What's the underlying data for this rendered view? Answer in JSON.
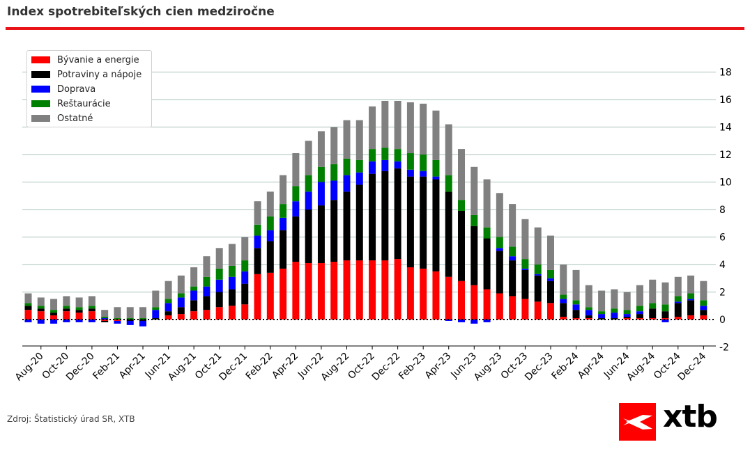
{
  "title": "Index spotrebiteľských cien medziročne",
  "source": "Zdroj: Štatistický úrad SR, XTB",
  "logo": {
    "text": "xtb"
  },
  "colors": {
    "accent": "#e8141a",
    "grid": "#a8c0bb"
  },
  "chart_data": {
    "type": "bar",
    "stacked": true,
    "title": "Index spotrebiteľských cien medziročne",
    "xlabel": "",
    "ylabel": "",
    "ylim": [
      -2,
      19
    ],
    "yticks": [
      -2,
      0,
      2,
      4,
      6,
      8,
      10,
      12,
      14,
      16,
      18
    ],
    "y_axis_side": "right",
    "grid": "horizontal",
    "zero_line": "dotted",
    "legend_position": "top-left",
    "categories": [
      "Jul-20",
      "Aug-20",
      "Sep-20",
      "Oct-20",
      "Nov-20",
      "Dec-20",
      "Jan-21",
      "Feb-21",
      "Mar-21",
      "Apr-21",
      "May-21",
      "Jun-21",
      "Jul-21",
      "Aug-21",
      "Sep-21",
      "Oct-21",
      "Nov-21",
      "Dec-21",
      "Jan-22",
      "Feb-22",
      "Mar-22",
      "Apr-22",
      "May-22",
      "Jun-22",
      "Jul-22",
      "Aug-22",
      "Sep-22",
      "Oct-22",
      "Nov-22",
      "Dec-22",
      "Jan-23",
      "Feb-23",
      "Mar-23",
      "Apr-23",
      "May-23",
      "Jun-23",
      "Jul-23",
      "Aug-23",
      "Sep-23",
      "Oct-23",
      "Nov-23",
      "Dec-23",
      "Jan-24",
      "Feb-24",
      "Mar-24",
      "Apr-24",
      "May-24",
      "Jun-24",
      "Jul-24",
      "Aug-24",
      "Sep-24",
      "Oct-24",
      "Nov-24",
      "Dec-24"
    ],
    "xtick_labels": [
      "Aug-20",
      "Oct-20",
      "Dec-20",
      "Feb-21",
      "Apr-21",
      "Jun-21",
      "Aug-21",
      "Oct-21",
      "Dec-21",
      "Feb-22",
      "Apr-22",
      "Jun-22",
      "Aug-22",
      "Oct-22",
      "Dec-22",
      "Feb-23",
      "Apr-23",
      "Jun-23",
      "Aug-23",
      "Oct-23",
      "Dec-23",
      "Feb-24",
      "Apr-24",
      "Jun-24",
      "Aug-24",
      "Oct-24",
      "Dec-24"
    ],
    "series": [
      {
        "name": "Bývanie a energie",
        "color": "#ff0000",
        "values": [
          0.7,
          0.6,
          0.3,
          0.6,
          0.5,
          0.6,
          -0.1,
          -0.1,
          0,
          0,
          0,
          0.3,
          0.4,
          0.6,
          0.7,
          0.9,
          1.0,
          1.1,
          3.3,
          3.4,
          3.7,
          4.2,
          4.1,
          4.1,
          4.2,
          4.3,
          4.3,
          4.3,
          4.3,
          4.4,
          3.8,
          3.7,
          3.5,
          3.1,
          2.8,
          2.5,
          2.2,
          1.9,
          1.7,
          1.5,
          1.3,
          1.2,
          0.2,
          0.1,
          0.1,
          0,
          0,
          0.1,
          0.1,
          0.1,
          0.1,
          0.2,
          0.3,
          0.3
        ]
      },
      {
        "name": "Potraviny a nápoje",
        "color": "#000000",
        "values": [
          0.3,
          0.2,
          0.2,
          0.2,
          0.2,
          0.2,
          -0.1,
          0,
          -0.1,
          -0.1,
          0.1,
          0.3,
          0.5,
          0.8,
          1.0,
          1.1,
          1.2,
          1.5,
          1.9,
          2.3,
          2.8,
          3.3,
          3.9,
          4.2,
          4.5,
          5.0,
          5.5,
          6.3,
          6.5,
          6.6,
          6.6,
          6.7,
          6.7,
          6.2,
          5.1,
          4.3,
          3.7,
          3.1,
          2.6,
          2.1,
          1.9,
          1.6,
          1.0,
          0.6,
          0.2,
          0.1,
          0.1,
          0.1,
          0.3,
          0.7,
          0.5,
          1.0,
          1.1,
          0.4
        ]
      },
      {
        "name": "Doprava",
        "color": "#0000ff",
        "values": [
          -0.2,
          -0.3,
          -0.3,
          -0.2,
          -0.2,
          -0.2,
          0.1,
          -0.2,
          -0.3,
          -0.4,
          0.6,
          0.6,
          0.7,
          0.7,
          0.7,
          0.9,
          0.9,
          0.9,
          0.9,
          0.8,
          0.9,
          1.1,
          1.3,
          1.7,
          1.4,
          1.2,
          0.9,
          0.9,
          0.8,
          0.5,
          0.5,
          0.4,
          0.2,
          -0.1,
          -0.2,
          -0.3,
          -0.2,
          0.2,
          0.3,
          0.1,
          0.1,
          0.2,
          0.3,
          0.4,
          0.4,
          0.3,
          0.4,
          0.2,
          0.2,
          0,
          -0.2,
          0.1,
          0.1,
          0.3
        ]
      },
      {
        "name": "Reštaurácie",
        "color": "#008000",
        "values": [
          0.2,
          0.2,
          0.2,
          0.2,
          0.2,
          0.2,
          0.1,
          0.1,
          0.1,
          0.1,
          0.2,
          0.3,
          0.3,
          0.3,
          0.7,
          0.8,
          0.8,
          0.8,
          0.8,
          1.0,
          1.0,
          1.1,
          1.2,
          1.1,
          1.2,
          1.2,
          0.9,
          0.9,
          0.9,
          0.9,
          1.2,
          1.2,
          1.2,
          1.2,
          0.8,
          0.8,
          0.8,
          0.8,
          0.7,
          0.7,
          0.7,
          0.6,
          0.3,
          0.3,
          0.2,
          0.2,
          0.3,
          0.3,
          0.4,
          0.4,
          0.5,
          0.4,
          0.4,
          0.4
        ]
      },
      {
        "name": "Ostatné",
        "color": "#808080",
        "values": [
          0.7,
          0.6,
          0.8,
          0.7,
          0.7,
          0.7,
          0.5,
          0.8,
          0.8,
          0.8,
          1.2,
          1.3,
          1.3,
          1.4,
          1.5,
          1.5,
          1.6,
          1.7,
          1.7,
          1.8,
          2.1,
          2.4,
          2.5,
          2.6,
          2.7,
          2.8,
          2.9,
          3.1,
          3.4,
          3.5,
          3.7,
          3.7,
          3.6,
          3.7,
          3.7,
          3.5,
          3.5,
          3.2,
          3.1,
          2.9,
          2.7,
          2.5,
          2.2,
          2.2,
          1.6,
          1.5,
          1.4,
          1.3,
          1.5,
          1.7,
          1.6,
          1.4,
          1.3,
          1.4
        ]
      }
    ]
  }
}
